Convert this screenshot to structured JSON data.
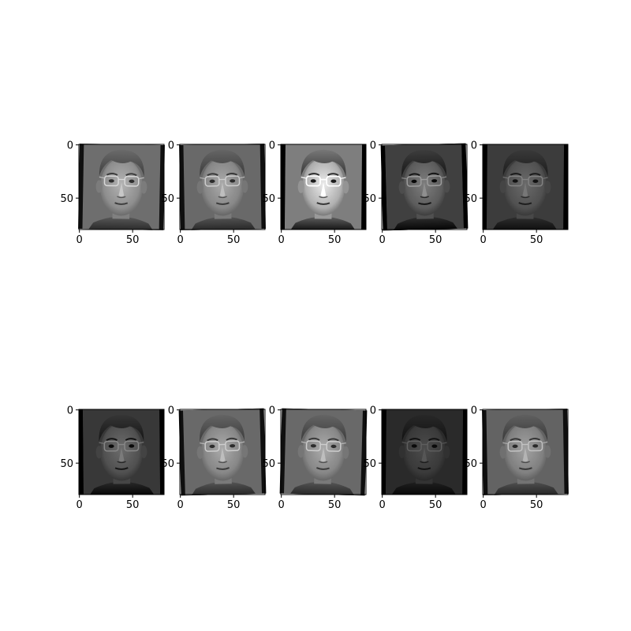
{
  "figure": {
    "background": "#ffffff",
    "rows": 2,
    "cols": 5,
    "image_size": [
      80,
      80
    ]
  },
  "axis": {
    "xticks": [
      "0",
      "50"
    ],
    "yticks": [
      "0",
      "50"
    ]
  },
  "panels": [
    {
      "subject": "face-photo",
      "brightness": 1.0,
      "contrast": 1.0,
      "rotate_deg": 1.0
    },
    {
      "subject": "face-photo",
      "brightness": 0.95,
      "contrast": 1.0,
      "rotate_deg": -1.0
    },
    {
      "subject": "face-photo",
      "brightness": 1.15,
      "contrast": 1.35,
      "rotate_deg": 0.5
    },
    {
      "subject": "face-photo",
      "brightness": 0.7,
      "contrast": 1.25,
      "rotate_deg": -1.5
    },
    {
      "subject": "face-photo",
      "brightness": 0.6,
      "contrast": 1.1,
      "rotate_deg": 0.5
    },
    {
      "subject": "face-photo",
      "brightness": 0.62,
      "contrast": 1.2,
      "rotate_deg": -0.5
    },
    {
      "subject": "face-photo",
      "brightness": 0.95,
      "contrast": 1.0,
      "rotate_deg": -1.5
    },
    {
      "subject": "face-photo",
      "brightness": 0.95,
      "contrast": 1.0,
      "rotate_deg": 1.5
    },
    {
      "subject": "face-photo",
      "brightness": 0.45,
      "contrast": 1.1,
      "rotate_deg": 0.5
    },
    {
      "subject": "face-photo",
      "brightness": 0.9,
      "contrast": 1.0,
      "rotate_deg": -1.0
    }
  ]
}
